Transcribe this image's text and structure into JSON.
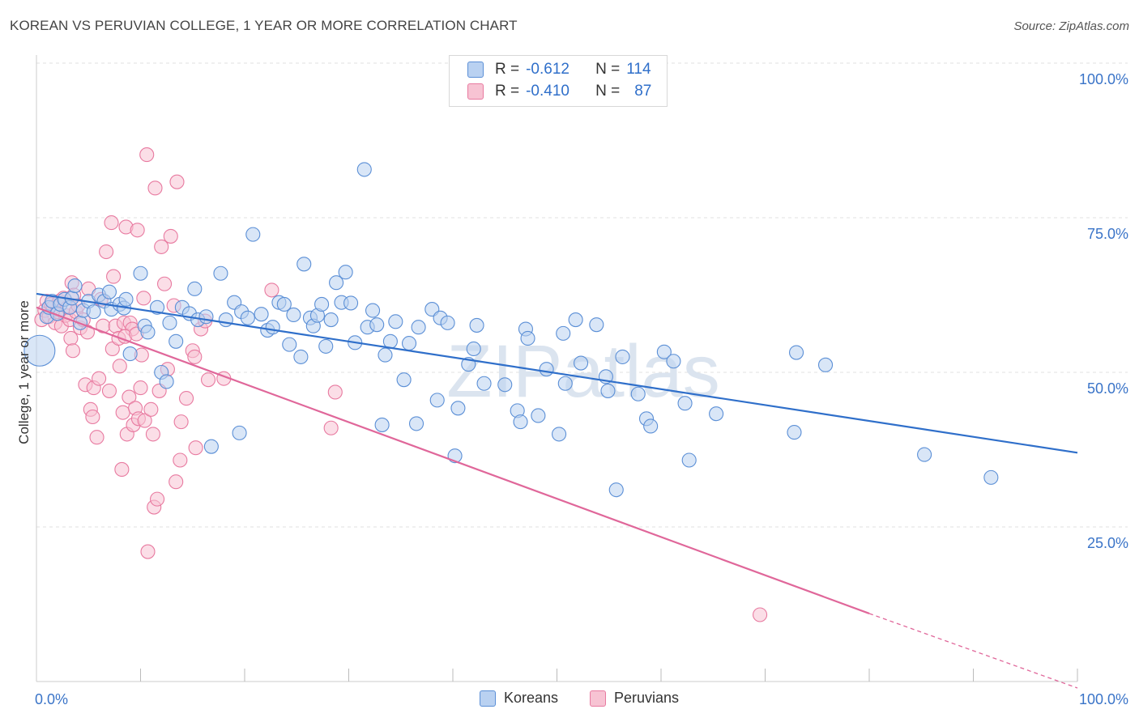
{
  "title": "KOREAN VS PERUVIAN COLLEGE, 1 YEAR OR MORE CORRELATION CHART",
  "source": "Source: ZipAtlas.com",
  "watermark": "ZIPatlas",
  "colors": {
    "korean": "#5b8fd6",
    "korean_fill": "#b9d1f1",
    "korean_line": "#2f6fca",
    "peruvian": "#e87aa0",
    "peruvian_fill": "#f7c3d3",
    "peruvian_line": "#e0679a",
    "axis_text": "#3a74c8"
  },
  "legend_stats": [
    {
      "r_label": "R =",
      "r_value": "-0.612",
      "n_label": "N =",
      "n_value": "114"
    },
    {
      "r_label": "R =",
      "r_value": "-0.410",
      "n_label": "N =",
      "n_value": "87"
    }
  ],
  "chart_data": {
    "type": "scatter",
    "title": "KOREAN VS PERUVIAN COLLEGE, 1 YEAR OR MORE CORRELATION CHART",
    "xlabel": "",
    "ylabel": "College, 1 year or more",
    "xlim": [
      0,
      100
    ],
    "ylim": [
      0,
      100
    ],
    "x_tick_labels": [
      "0.0%",
      "100.0%"
    ],
    "y_tick_labels": [
      "100.0%",
      "75.0%",
      "50.0%",
      "25.0%"
    ],
    "y_ticks": [
      100,
      75,
      50,
      25
    ],
    "grid": true,
    "legend_position": "bottom",
    "series": [
      {
        "name": "Koreans",
        "r": -0.612,
        "n": 114,
        "trend": {
          "x0": 0,
          "y0": 62.7,
          "x1": 100,
          "y1": 37.0
        },
        "points": [
          [
            0.3,
            53.5
          ],
          [
            1,
            59
          ],
          [
            1.2,
            60.5
          ],
          [
            1.5,
            61.5
          ],
          [
            2,
            59.5
          ],
          [
            2.3,
            61
          ],
          [
            2.7,
            61.8
          ],
          [
            3.2,
            60.5
          ],
          [
            3.4,
            62
          ],
          [
            3.7,
            64
          ],
          [
            4.2,
            58
          ],
          [
            4.5,
            60
          ],
          [
            5,
            61.5
          ],
          [
            5.5,
            59.8
          ],
          [
            6,
            62.5
          ],
          [
            6.5,
            61.5
          ],
          [
            7,
            63
          ],
          [
            7.2,
            60.2
          ],
          [
            8,
            61
          ],
          [
            8.4,
            60.4
          ],
          [
            8.6,
            61.8
          ],
          [
            9,
            53
          ],
          [
            10,
            66
          ],
          [
            10.4,
            57.5
          ],
          [
            10.7,
            56.5
          ],
          [
            11.6,
            60.5
          ],
          [
            12,
            50
          ],
          [
            12.5,
            48.5
          ],
          [
            12.8,
            58
          ],
          [
            13.4,
            55
          ],
          [
            14,
            60.5
          ],
          [
            14.7,
            59.5
          ],
          [
            15.2,
            63.5
          ],
          [
            15.5,
            58.5
          ],
          [
            16.3,
            59
          ],
          [
            16.8,
            38
          ],
          [
            17.7,
            66
          ],
          [
            18.2,
            58.5
          ],
          [
            19,
            61.3
          ],
          [
            19.5,
            40.2
          ],
          [
            19.7,
            59.8
          ],
          [
            20.3,
            58.8
          ],
          [
            20.8,
            72.3
          ],
          [
            21.6,
            59.4
          ],
          [
            22.2,
            56.8
          ],
          [
            22.7,
            57.3
          ],
          [
            23.3,
            61.3
          ],
          [
            23.8,
            61
          ],
          [
            24.3,
            54.5
          ],
          [
            24.7,
            59.3
          ],
          [
            25.4,
            52.5
          ],
          [
            25.7,
            67.5
          ],
          [
            26.3,
            58.8
          ],
          [
            26.6,
            57.5
          ],
          [
            27,
            59.2
          ],
          [
            27.4,
            61
          ],
          [
            27.8,
            54.2
          ],
          [
            28.3,
            58.5
          ],
          [
            28.8,
            64.5
          ],
          [
            29.3,
            61.3
          ],
          [
            29.7,
            66.2
          ],
          [
            30.2,
            61.2
          ],
          [
            30.6,
            54.8
          ],
          [
            31.5,
            82.8
          ],
          [
            31.8,
            57.3
          ],
          [
            32.3,
            60
          ],
          [
            32.7,
            57.7
          ],
          [
            33.2,
            41.5
          ],
          [
            33.5,
            52.8
          ],
          [
            34,
            55
          ],
          [
            34.5,
            58.2
          ],
          [
            35.3,
            48.8
          ],
          [
            35.8,
            54.7
          ],
          [
            36.5,
            41.7
          ],
          [
            36.7,
            57.3
          ],
          [
            38,
            60.2
          ],
          [
            38.5,
            45.5
          ],
          [
            38.8,
            58.8
          ],
          [
            39.5,
            58
          ],
          [
            40.2,
            36.5
          ],
          [
            40.5,
            44.2
          ],
          [
            41.5,
            51.3
          ],
          [
            42,
            53.8
          ],
          [
            42.3,
            57.6
          ],
          [
            43,
            48.2
          ],
          [
            45,
            48
          ],
          [
            46.2,
            43.8
          ],
          [
            46.5,
            42
          ],
          [
            47,
            57
          ],
          [
            47.2,
            55.5
          ],
          [
            48.2,
            43
          ],
          [
            49,
            50.5
          ],
          [
            50.2,
            40
          ],
          [
            50.6,
            56.3
          ],
          [
            50.8,
            48.2
          ],
          [
            51.8,
            58.5
          ],
          [
            52.3,
            51.5
          ],
          [
            53.8,
            57.7
          ],
          [
            54.7,
            49.3
          ],
          [
            54.9,
            47
          ],
          [
            55.7,
            31
          ],
          [
            56.3,
            52.5
          ],
          [
            57.8,
            46.5
          ],
          [
            58.6,
            42.5
          ],
          [
            59,
            41.3
          ],
          [
            60.3,
            53.3
          ],
          [
            61.2,
            51.8
          ],
          [
            62.3,
            45
          ],
          [
            62.7,
            35.8
          ],
          [
            65.3,
            43.3
          ],
          [
            72.8,
            40.3
          ],
          [
            73,
            53.2
          ],
          [
            75.8,
            51.2
          ],
          [
            85.3,
            36.7
          ],
          [
            91.7,
            33
          ]
        ],
        "sizes": {
          "0.3,53.5": "large"
        }
      },
      {
        "name": "Peruvians",
        "r": -0.41,
        "n": 87,
        "trend": {
          "x0": 0,
          "y0": 60.5,
          "x1": 80,
          "y1": 11.0,
          "dashed_to": {
            "x": 100,
            "y": -1.5
          }
        },
        "points": [
          [
            0.5,
            58.5
          ],
          [
            0.8,
            60
          ],
          [
            1,
            61.5
          ],
          [
            1.2,
            59
          ],
          [
            1.4,
            61
          ],
          [
            1.6,
            60.5
          ],
          [
            1.8,
            58
          ],
          [
            2,
            59.8
          ],
          [
            2.2,
            61.5
          ],
          [
            2.4,
            57.5
          ],
          [
            2.6,
            62
          ],
          [
            2.8,
            59.2
          ],
          [
            3,
            60.5
          ],
          [
            3.2,
            58.5
          ],
          [
            3.3,
            55.5
          ],
          [
            3.4,
            64.5
          ],
          [
            3.5,
            53.5
          ],
          [
            3.6,
            62.5
          ],
          [
            3.8,
            59.8
          ],
          [
            4,
            60.8
          ],
          [
            4.2,
            57.2
          ],
          [
            4.5,
            58.5
          ],
          [
            4.7,
            48
          ],
          [
            4.9,
            56.5
          ],
          [
            5,
            63.5
          ],
          [
            5.2,
            44
          ],
          [
            5.4,
            42.8
          ],
          [
            5.5,
            47.5
          ],
          [
            5.8,
            39.5
          ],
          [
            6,
            49
          ],
          [
            6.2,
            61.8
          ],
          [
            6.4,
            57.5
          ],
          [
            6.7,
            69.5
          ],
          [
            7,
            47
          ],
          [
            7.2,
            74.2
          ],
          [
            7.3,
            53.8
          ],
          [
            7.4,
            65.5
          ],
          [
            7.6,
            57.5
          ],
          [
            7.9,
            55.5
          ],
          [
            8,
            51
          ],
          [
            8.2,
            34.3
          ],
          [
            8.3,
            43.5
          ],
          [
            8.4,
            58
          ],
          [
            8.6,
            73.5
          ],
          [
            8.7,
            40
          ],
          [
            8.9,
            46
          ],
          [
            9,
            58
          ],
          [
            9.2,
            57
          ],
          [
            9.3,
            41.5
          ],
          [
            9.5,
            44.2
          ],
          [
            9.7,
            73
          ],
          [
            9.8,
            42.5
          ],
          [
            10,
            47.5
          ],
          [
            10.1,
            52.8
          ],
          [
            10.3,
            62
          ],
          [
            10.4,
            42.2
          ],
          [
            10.6,
            85.2
          ],
          [
            10.7,
            21
          ],
          [
            11,
            44
          ],
          [
            11.2,
            40
          ],
          [
            11.3,
            28.2
          ],
          [
            11.4,
            79.8
          ],
          [
            11.6,
            29.5
          ],
          [
            11.8,
            47
          ],
          [
            12,
            70.3
          ],
          [
            12.3,
            64.3
          ],
          [
            12.6,
            50.5
          ],
          [
            12.9,
            72
          ],
          [
            13.2,
            60.8
          ],
          [
            13.4,
            32.3
          ],
          [
            13.5,
            80.8
          ],
          [
            13.8,
            35.8
          ],
          [
            13.9,
            42
          ],
          [
            14.4,
            45.8
          ],
          [
            15,
            53.5
          ],
          [
            15.2,
            52.5
          ],
          [
            15.3,
            37.8
          ],
          [
            15.8,
            57
          ],
          [
            16.2,
            58.3
          ],
          [
            16.5,
            48.8
          ],
          [
            18,
            49
          ],
          [
            22.6,
            63.3
          ],
          [
            28.3,
            41
          ],
          [
            28.7,
            46.8
          ],
          [
            69.5,
            10.8
          ],
          [
            8.5,
            55.8
          ],
          [
            9.6,
            56.2
          ]
        ]
      }
    ]
  },
  "bottom_legend": {
    "koreans": "Koreans",
    "peruvians": "Peruvians"
  }
}
